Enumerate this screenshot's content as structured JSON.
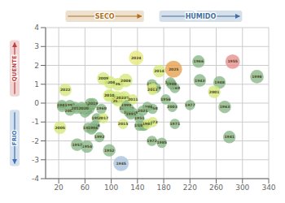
{
  "chart_data": {
    "type": "scatter",
    "labels": [
      "1941",
      "1943",
      "1944",
      "1945",
      "1946",
      "1948",
      "1949",
      "1950",
      "1951",
      "1952",
      "1953",
      "1954",
      "1955",
      "1956",
      "1957",
      "1958",
      "1959",
      "1960",
      "1961",
      "1962",
      "1963",
      "1964",
      "1965",
      "1966",
      "1967",
      "1968",
      "1969",
      "1970",
      "1971",
      "1972",
      "1973",
      "1974",
      "1975",
      "1976",
      "1977",
      "1978",
      "1979",
      "1980",
      "1981",
      "1982",
      "1983",
      "1984",
      "1985",
      "1986",
      "1987",
      "1988",
      "1989",
      "1990",
      "1991",
      "1992",
      "1993",
      "1994",
      "1995",
      "1996",
      "1997",
      "1998",
      "1999",
      "2000",
      "2001",
      "2002",
      "2003",
      "2004",
      "2005",
      "2006",
      "2007",
      "2008",
      "2009",
      "2010",
      "2011",
      "2012",
      "2013",
      "2014",
      "2015",
      "2016",
      "2017",
      "2018",
      "2019",
      "2020",
      "2021",
      "2022",
      "2023",
      "2024",
      "2025"
    ],
    "x": [
      280,
      235,
      55,
      115,
      75,
      265,
      68,
      78,
      143,
      97,
      70,
      63,
      285,
      183,
      48,
      163,
      162,
      85,
      25,
      143,
      273,
      63,
      150,
      233,
      148,
      55,
      197,
      97,
      197,
      162,
      163,
      190,
      120,
      120,
      220,
      127,
      168,
      107,
      25,
      110,
      45,
      58,
      177,
      133,
      155,
      192,
      127,
      65,
      130,
      82,
      60,
      155,
      163,
      72,
      37,
      322,
      123,
      58,
      257,
      108,
      193,
      98,
      22,
      67,
      37,
      122,
      88,
      97,
      133,
      47,
      163,
      173,
      118,
      110,
      88,
      70,
      72,
      58,
      148,
      30,
      115,
      138,
      195
    ],
    "values": [
      -1.8,
      1.2,
      -0.3,
      -3.2,
      -1.2,
      1.1,
      0,
      -0.8,
      -0.8,
      -2.5,
      -1.4,
      -2.3,
      2.2,
      0.2,
      -2.2,
      -0.3,
      1.0,
      -0.3,
      -0.2,
      -1.2,
      -0.2,
      -0.4,
      -1.2,
      2.2,
      -1.2,
      -0.2,
      0.8,
      0.4,
      -1.1,
      -2.0,
      -1.0,
      1.1,
      0.3,
      -0.3,
      -0.1,
      -0.3,
      0.8,
      0.2,
      -0.1,
      1.0,
      -0.2,
      -0.3,
      -2.1,
      -0.5,
      -1.1,
      1.0,
      -0.5,
      -1.3,
      -0.6,
      -1.8,
      -0.5,
      -0.2,
      0.8,
      -1.3,
      -0.1,
      1.4,
      -0.1,
      -0.3,
      0.6,
      0.3,
      -0.2,
      1.1,
      -1.3,
      -0.3,
      -0.4,
      1.2,
      1.3,
      0.4,
      0.2,
      -0.3,
      0.7,
      1.7,
      -1.1,
      0.1,
      -0.8,
      -0.1,
      0,
      -0.3,
      -0.4,
      0.7,
      0.3,
      2.4,
      1.8
    ],
    "colors": [
      "#8ab88a",
      "#8ab88a",
      "#8ab88a",
      "#aac4e0",
      "#8ab88a",
      "#8ab88a",
      "#8ab88a",
      "#8ab88a",
      "#8ab88a",
      "#8ab88a",
      "#8ab88a",
      "#8ab88a",
      "#e89090",
      "#8ab88a",
      "#8ab88a",
      "#8ab88a",
      "#8ab88a",
      "#8ab88a",
      "#8ab88a",
      "#8ab88a",
      "#8ab88a",
      "#8ab88a",
      "#8ab88a",
      "#8ab88a",
      "#8ab88a",
      "#8ab88a",
      "#8ab88a",
      "#d4e87e",
      "#8ab88a",
      "#8ab88a",
      "#d4e87e",
      "#8ab88a",
      "#d4e87e",
      "#8ab88a",
      "#8ab88a",
      "#8ab88a",
      "#8ab88a",
      "#8ab88a",
      "#8ab88a",
      "#d4e87e",
      "#8ab88a",
      "#8ab88a",
      "#8ab88a",
      "#8ab88a",
      "#d4e87e",
      "#8ab88a",
      "#8ab88a",
      "#8ab88a",
      "#8ab88a",
      "#8ab88a",
      "#8ab88a",
      "#8ab88a",
      "#d4e87e",
      "#8ab88a",
      "#8ab88a",
      "#8ab88a",
      "#8ab88a",
      "#8ab88a",
      "#d4e87e",
      "#d4e87e",
      "#8ab88a",
      "#d4e87e",
      "#d4e87e",
      "#8ab88a",
      "#8ab88a",
      "#d4e87e",
      "#d4e87e",
      "#d4e87e",
      "#d4e87e",
      "#8ab88a",
      "#d4e87e",
      "#d4e87e",
      "#d4e87e",
      "#d4e87e",
      "#d4e87e",
      "#8ab88a",
      "#8ab88a",
      "#8ab88a",
      "#8ab88a",
      "#d4e87e",
      "#d4e87e",
      "#e8e87e",
      "#e8a050"
    ],
    "sizes": [
      120,
      120,
      80,
      180,
      80,
      120,
      80,
      80,
      80,
      120,
      80,
      120,
      160,
      80,
      120,
      80,
      80,
      80,
      80,
      80,
      120,
      80,
      80,
      120,
      80,
      80,
      80,
      120,
      80,
      80,
      80,
      80,
      120,
      80,
      80,
      80,
      80,
      80,
      80,
      120,
      80,
      80,
      80,
      80,
      80,
      80,
      80,
      80,
      80,
      80,
      80,
      80,
      80,
      80,
      80,
      140,
      80,
      80,
      120,
      120,
      80,
      120,
      120,
      80,
      80,
      140,
      120,
      80,
      80,
      80,
      80,
      120,
      80,
      80,
      80,
      80,
      80,
      80,
      80,
      120,
      80,
      160,
      220
    ],
    "xlim": [
      0,
      340
    ],
    "ylim": [
      -4.0,
      4.0
    ],
    "xticks": [
      20,
      60,
      100,
      140,
      180,
      220,
      260,
      300,
      340
    ],
    "yticks": [
      -4.0,
      -3.0,
      -2.0,
      -1.0,
      0.0,
      1.0,
      2.0,
      3.0,
      4.0
    ],
    "grid": true,
    "annotations": [
      {
        "text": "SECO",
        "color": "#b07020"
      },
      {
        "text": "HÚMIDO",
        "color": "#4070a0"
      },
      {
        "text": "QUENTE",
        "color": "#c04040"
      },
      {
        "text": "FRIO",
        "color": "#4070b0"
      }
    ]
  }
}
